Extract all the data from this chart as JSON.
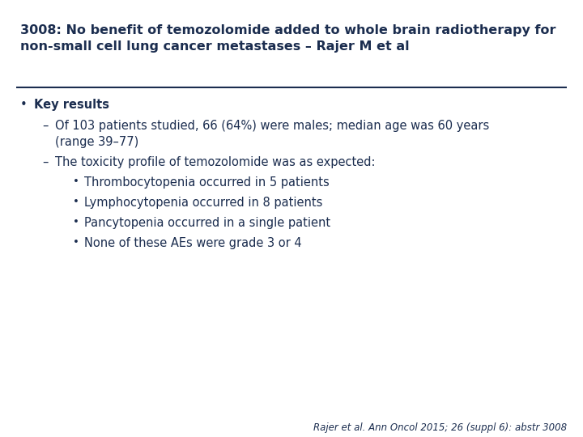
{
  "title_line1": "3008: No benefit of temozolomide added to whole brain radiotherapy for",
  "title_line2": "non-small cell lung cancer metastases – Rajer M et al",
  "title_color": "#1b2d4f",
  "title_fontsize": 11.5,
  "line_color": "#1b2d4f",
  "bullet_main": "Key results",
  "text_color": "#1b2d4f",
  "body_fontsize": 10.5,
  "footnote": "Rajer et al. Ann Oncol 2015; 26 (suppl 6): abstr 3008",
  "footnote_fontsize": 8.5,
  "background_color": "#ffffff"
}
